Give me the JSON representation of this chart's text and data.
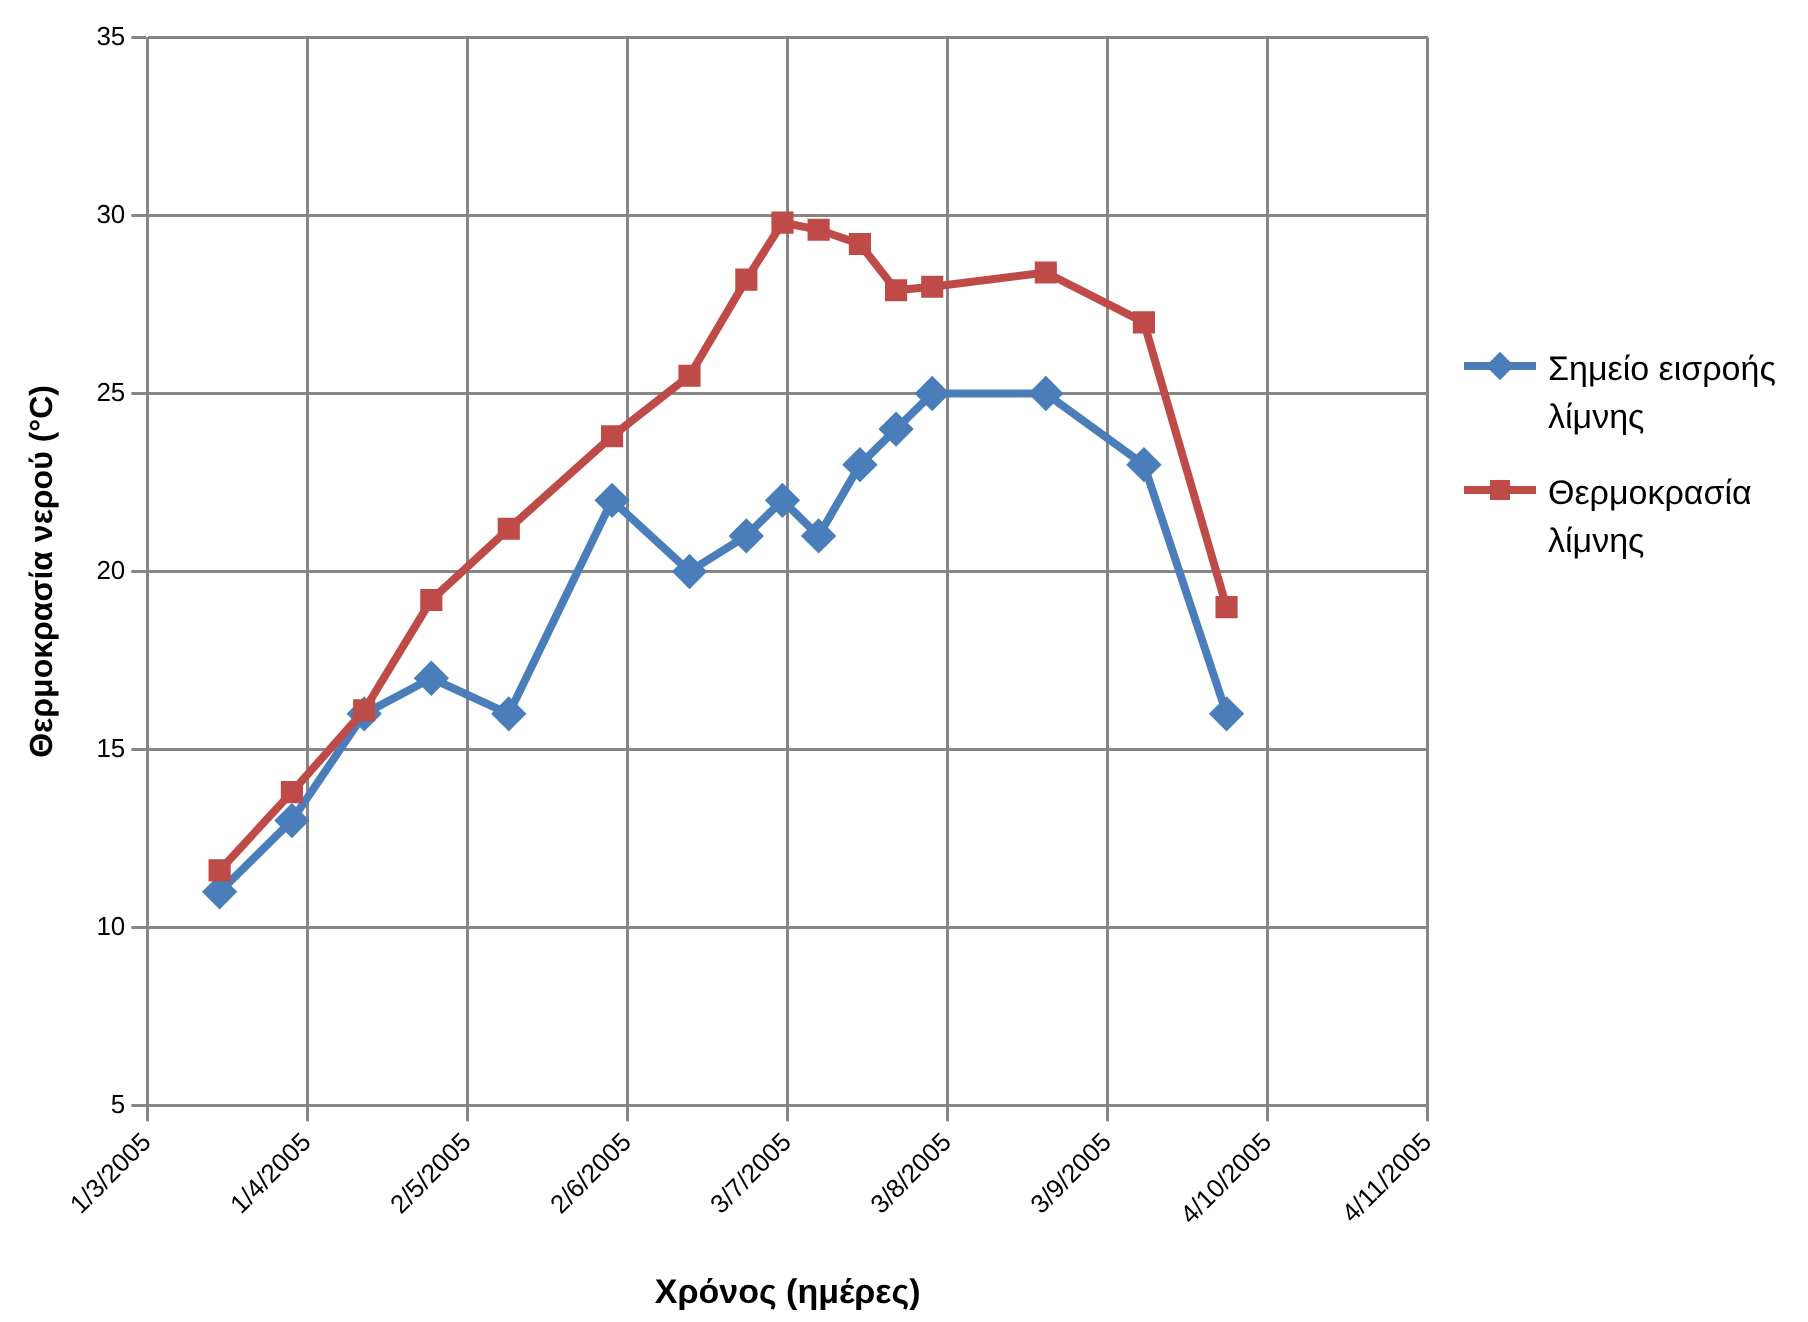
{
  "chart_data": {
    "type": "line",
    "xlabel": "Χρόνος (ημέρες)",
    "ylabel": "Θερμοκρασία νερού (°C)",
    "x": [
      "2005-03-15",
      "2005-03-29",
      "2005-04-12",
      "2005-04-25",
      "2005-05-10",
      "2005-05-30",
      "2005-06-14",
      "2005-06-25",
      "2005-07-02",
      "2005-07-09",
      "2005-07-17",
      "2005-07-24",
      "2005-07-31",
      "2005-08-22",
      "2005-09-10",
      "2005-09-26"
    ],
    "series": [
      {
        "name": "Σημείο εισροής λίμνης",
        "color": "#4a7ebb",
        "marker": "diamond",
        "values": [
          11,
          13,
          16,
          17,
          16,
          22,
          20,
          21,
          22,
          21,
          23,
          24,
          25,
          25,
          23,
          16
        ]
      },
      {
        "name": "Θερμοκρασία λίμνης",
        "color": "#be4b48",
        "marker": "square",
        "values": [
          11.6,
          13.8,
          16.1,
          19.2,
          21.2,
          23.8,
          25.5,
          28.2,
          29.8,
          29.6,
          29.2,
          27.9,
          28,
          28.4,
          27,
          19
        ]
      }
    ],
    "xlim": [
      "2005-03-01",
      "2005-11-04"
    ],
    "xticks": [
      {
        "value": "2005-03-01",
        "label": "1/3/2005"
      },
      {
        "value": "2005-04-01",
        "label": "1/4/2005"
      },
      {
        "value": "2005-05-02",
        "label": "2/5/2005"
      },
      {
        "value": "2005-06-02",
        "label": "2/6/2005"
      },
      {
        "value": "2005-07-03",
        "label": "3/7/2005"
      },
      {
        "value": "2005-08-03",
        "label": "3/8/2005"
      },
      {
        "value": "2005-09-03",
        "label": "3/9/2005"
      },
      {
        "value": "2005-10-04",
        "label": "4/10/2005"
      },
      {
        "value": "2005-11-04",
        "label": "4/11/2005"
      }
    ],
    "ylim": [
      5,
      35
    ],
    "yticks": [
      5,
      10,
      15,
      20,
      25,
      30,
      35
    ],
    "grid": true,
    "legend": "right",
    "line_style": "solid"
  }
}
